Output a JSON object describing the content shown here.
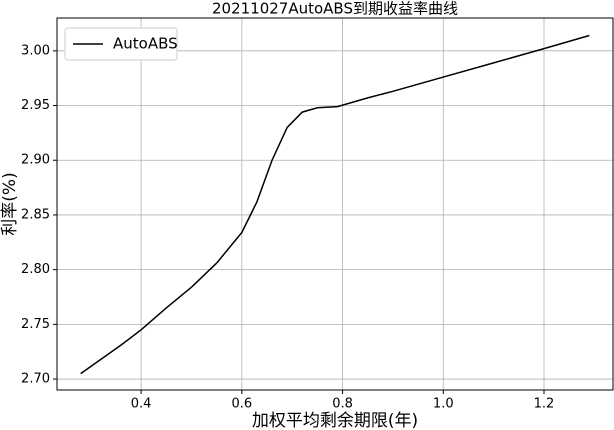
{
  "chart_data": {
    "type": "line",
    "title": "20211027AutoABS到期收益率曲线",
    "x_label": "加权平均剩余期限(年)",
    "y_label": "利率(%)",
    "x": [
      0.28,
      0.32,
      0.36,
      0.4,
      0.45,
      0.5,
      0.55,
      0.6,
      0.63,
      0.66,
      0.69,
      0.72,
      0.75,
      0.79,
      0.85,
      0.9,
      1.0,
      1.1,
      1.2,
      1.29
    ],
    "series": [
      {
        "name": "AutoABS",
        "color": "#000000",
        "values": [
          2.705,
          2.718,
          2.731,
          2.745,
          2.765,
          2.784,
          2.806,
          2.834,
          2.862,
          2.9,
          2.93,
          2.944,
          2.948,
          2.949,
          2.957,
          2.963,
          2.976,
          2.989,
          3.002,
          3.014
        ]
      }
    ],
    "xlim": [
      0.233,
      1.337
    ],
    "ylim": [
      2.69,
      3.03
    ],
    "xticks": [
      0.4,
      0.6,
      0.8,
      {
        "value": 1.0,
        "label": "1.0"
      },
      1.2
    ],
    "yticks": [
      {
        "value": 2.7,
        "label": "2.70"
      },
      2.75,
      {
        "value": 2.8,
        "label": "2.80"
      },
      2.85,
      {
        "value": 2.9,
        "label": "2.90"
      },
      2.95,
      {
        "value": 3.0,
        "label": "3.00"
      }
    ],
    "grid": true,
    "legend": "upper left"
  }
}
